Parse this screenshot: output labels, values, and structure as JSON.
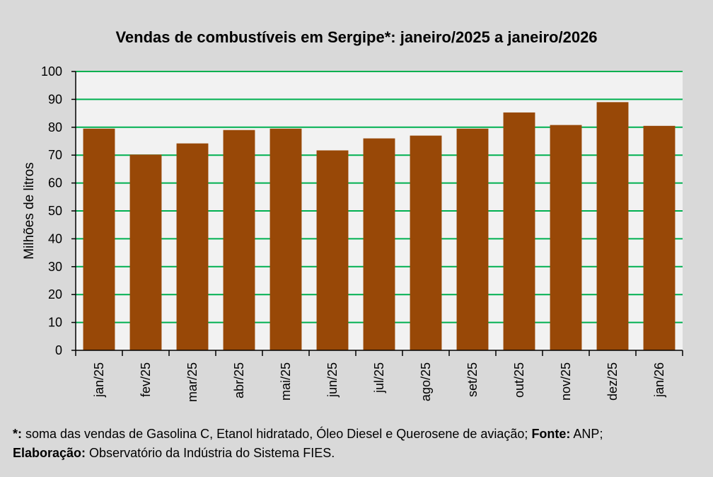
{
  "chart_data": {
    "type": "bar",
    "title": "Vendas de combustíveis em Sergipe*: janeiro/2025 a janeiro/2026",
    "ylabel": "Milhões de litros",
    "xlabel": "",
    "ylim": [
      0,
      100
    ],
    "yticks": [
      0,
      10,
      20,
      30,
      40,
      50,
      60,
      70,
      80,
      90,
      100
    ],
    "grid": true,
    "categories": [
      "jan/25",
      "fev/25",
      "mar/25",
      "abr/25",
      "mai/25",
      "jun/25",
      "jul/25",
      "ago/25",
      "set/25",
      "out/25",
      "nov/25",
      "dez/25",
      "jan/26"
    ],
    "values": [
      79.5,
      70.2,
      74.2,
      79.0,
      79.5,
      71.7,
      76.0,
      77.0,
      79.5,
      85.3,
      80.8,
      89.0,
      80.5
    ]
  },
  "colors": {
    "bar": "#984807",
    "grid": "#00b050",
    "plot_background": "#f2f2f2",
    "page_background": "#d9d9d9"
  },
  "footnote": {
    "line1_bold": "*:",
    "line1_text": " soma das vendas de Gasolina C, Etanol hidratado, Óleo Diesel e Querosene de aviação; ",
    "line1_bold2": "Fonte:",
    "line1_text2": " ANP;",
    "line2_bold": "Elaboração:",
    "line2_text": " Observatório da Indústria do Sistema FIES."
  }
}
